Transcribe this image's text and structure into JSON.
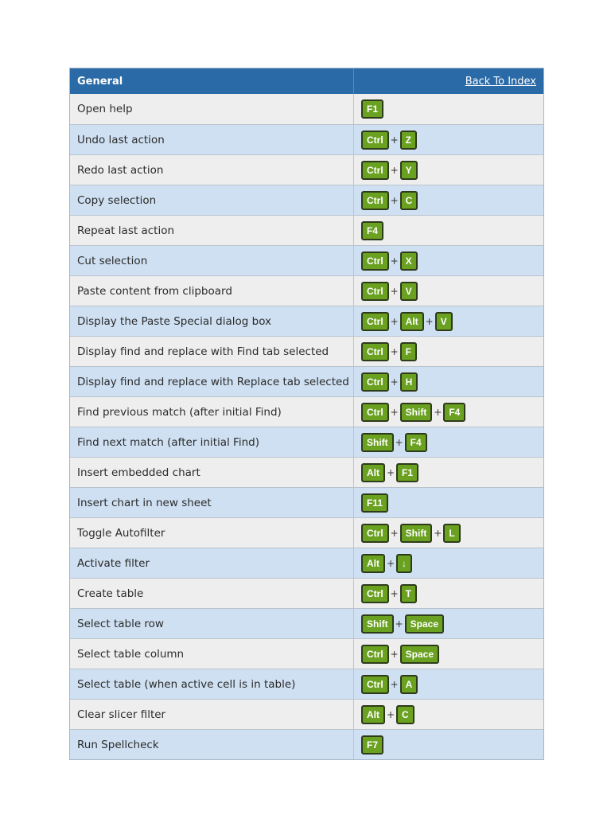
{
  "header": {
    "title": "General",
    "link": "Back To Index"
  },
  "rows": [
    {
      "action": "Open help",
      "keys": [
        "F1"
      ]
    },
    {
      "action": "Undo last action",
      "keys": [
        "Ctrl",
        "Z"
      ]
    },
    {
      "action": "Redo last action",
      "keys": [
        "Ctrl",
        "Y"
      ]
    },
    {
      "action": "Copy selection",
      "keys": [
        "Ctrl",
        "C"
      ]
    },
    {
      "action": "Repeat last action",
      "keys": [
        "F4"
      ]
    },
    {
      "action": "Cut selection",
      "keys": [
        "Ctrl",
        "X"
      ]
    },
    {
      "action": "Paste content from clipboard",
      "keys": [
        "Ctrl",
        "V"
      ]
    },
    {
      "action": "Display the Paste Special dialog box",
      "keys": [
        "Ctrl",
        "Alt",
        "V"
      ]
    },
    {
      "action": "Display find and replace with Find tab selected",
      "keys": [
        "Ctrl",
        "F"
      ]
    },
    {
      "action": "Display find and replace with Replace tab selected",
      "keys": [
        "Ctrl",
        "H"
      ]
    },
    {
      "action": "Find previous match (after initial Find)",
      "keys": [
        "Ctrl",
        "Shift",
        "F4"
      ]
    },
    {
      "action": "Find next match (after initial Find)",
      "keys": [
        "Shift",
        "F4"
      ]
    },
    {
      "action": "Insert embedded chart",
      "keys": [
        "Alt",
        "F1"
      ]
    },
    {
      "action": "Insert chart in new sheet",
      "keys": [
        "F11"
      ]
    },
    {
      "action": "Toggle Autofilter",
      "keys": [
        "Ctrl",
        "Shift",
        "L"
      ]
    },
    {
      "action": "Activate filter",
      "keys": [
        "Alt",
        "↓"
      ]
    },
    {
      "action": "Create table",
      "keys": [
        "Ctrl",
        "T"
      ]
    },
    {
      "action": "Select table row",
      "keys": [
        "Shift",
        "Space"
      ]
    },
    {
      "action": "Select table column",
      "keys": [
        "Ctrl",
        "Space"
      ]
    },
    {
      "action": "Select table (when active cell is in table)",
      "keys": [
        "Ctrl",
        "A"
      ]
    },
    {
      "action": "Clear slicer filter",
      "keys": [
        "Alt",
        "C"
      ]
    },
    {
      "action": "Run Spellcheck",
      "keys": [
        "F7"
      ]
    }
  ],
  "separator": "+",
  "colors": {
    "header_bg": "#2a6aa6",
    "key_bg": "#6aa121",
    "row_odd": "#eeeeee",
    "row_even": "#cfe0f2"
  }
}
